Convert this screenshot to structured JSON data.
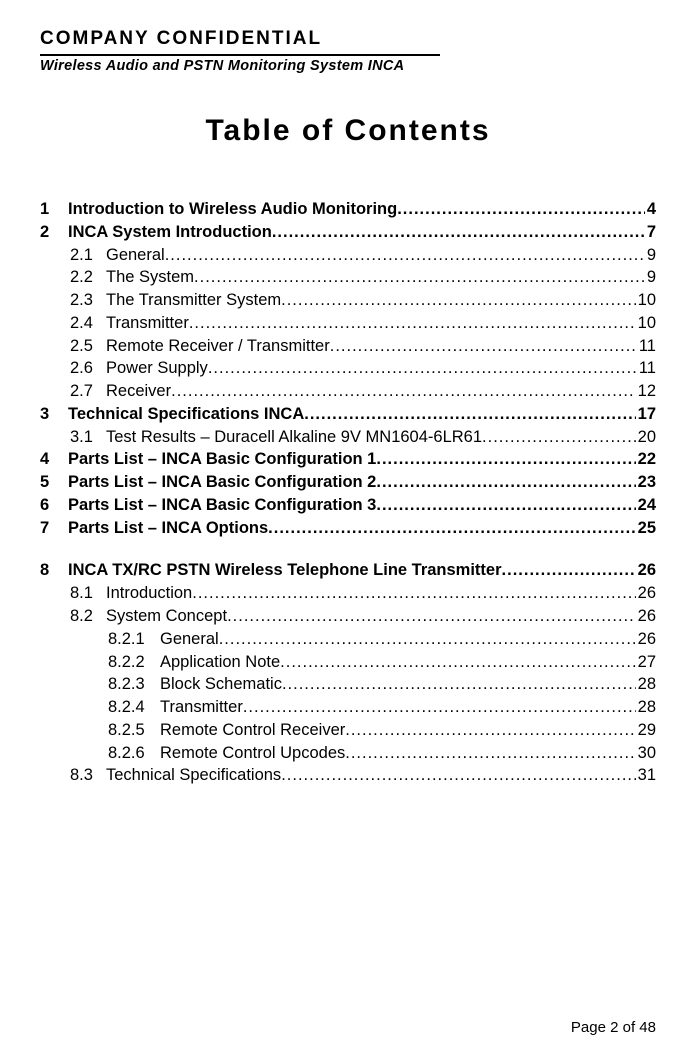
{
  "header": {
    "confidential": "COMPANY CONFIDENTIAL",
    "subtitle": "Wireless Audio and PSTN Monitoring System  INCA"
  },
  "title": "Table of Contents",
  "toc": [
    {
      "level": 1,
      "num": "1",
      "text": "Introduction to Wireless Audio Monitoring",
      "page": "4",
      "bold": true
    },
    {
      "level": 1,
      "num": "2",
      "text": "INCA System Introduction ",
      "page": "7",
      "bold": true
    },
    {
      "level": 2,
      "num": "2.1",
      "text": "General",
      "page": "9",
      "bold": false
    },
    {
      "level": 2,
      "num": "2.2",
      "text": "The System ",
      "page": "9",
      "bold": false
    },
    {
      "level": 2,
      "num": "2.3",
      "text": "The Transmitter System",
      "page": "10",
      "bold": false
    },
    {
      "level": 2,
      "num": "2.4",
      "text": "Transmitter ",
      "page": "10",
      "bold": false
    },
    {
      "level": 2,
      "num": "2.5",
      "text": "Remote Receiver / Transmitter ",
      "page": "11",
      "bold": false
    },
    {
      "level": 2,
      "num": "2.6",
      "text": "Power Supply ",
      "page": "11",
      "bold": false
    },
    {
      "level": 2,
      "num": "2.7",
      "text": "Receiver ",
      "page": "12",
      "bold": false
    },
    {
      "level": 1,
      "num": "3",
      "text": "Technical Specifications INCA ",
      "page": "17",
      "bold": true
    },
    {
      "level": 2,
      "num": "3.1",
      "text": "Test Results – Duracell Alkaline 9V MN1604-6LR61 ",
      "page": "20",
      "bold": false
    },
    {
      "level": 1,
      "num": "4",
      "text": "Parts List – INCA Basic Configuration 1 ",
      "page": "22",
      "bold": true
    },
    {
      "level": 1,
      "num": "5",
      "text": "Parts List – INCA Basic Configuration 2 ",
      "page": "23",
      "bold": true
    },
    {
      "level": 1,
      "num": "6",
      "text": "Parts List – INCA Basic Configuration 3 ",
      "page": "24",
      "bold": true
    },
    {
      "level": 1,
      "num": "7",
      "text": "Parts List – INCA Options ",
      "page": "25",
      "bold": true
    },
    {
      "level": 0,
      "gap": true
    },
    {
      "level": 1,
      "num": "8",
      "text": "INCA TX/RC PSTN Wireless Telephone Line Transmitter ",
      "page": "26",
      "bold": true
    },
    {
      "level": 2,
      "num": "8.1",
      "text": "Introduction",
      "page": "26",
      "bold": false
    },
    {
      "level": 2,
      "num": "8.2",
      "text": "System Concept ",
      "page": "26",
      "bold": false
    },
    {
      "level": 3,
      "num": "8.2.1",
      "text": "General ",
      "page": "26",
      "bold": false
    },
    {
      "level": 3,
      "num": "8.2.2",
      "text": "Application Note",
      "page": "27",
      "bold": false
    },
    {
      "level": 3,
      "num": "8.2.3",
      "text": "Block Schematic",
      "page": "28",
      "bold": false
    },
    {
      "level": 3,
      "num": "8.2.4",
      "text": "Transmitter",
      "page": "28",
      "bold": false
    },
    {
      "level": 3,
      "num": "8.2.5",
      "text": "Remote Control Receiver",
      "page": "29",
      "bold": false
    },
    {
      "level": 3,
      "num": "8.2.6",
      "text": "Remote Control Upcodes",
      "page": "30",
      "bold": false
    },
    {
      "level": 2,
      "num": "8.3",
      "text": "Technical Specifications",
      "page": "31",
      "bold": false
    }
  ],
  "footer": "Page 2 of 48"
}
